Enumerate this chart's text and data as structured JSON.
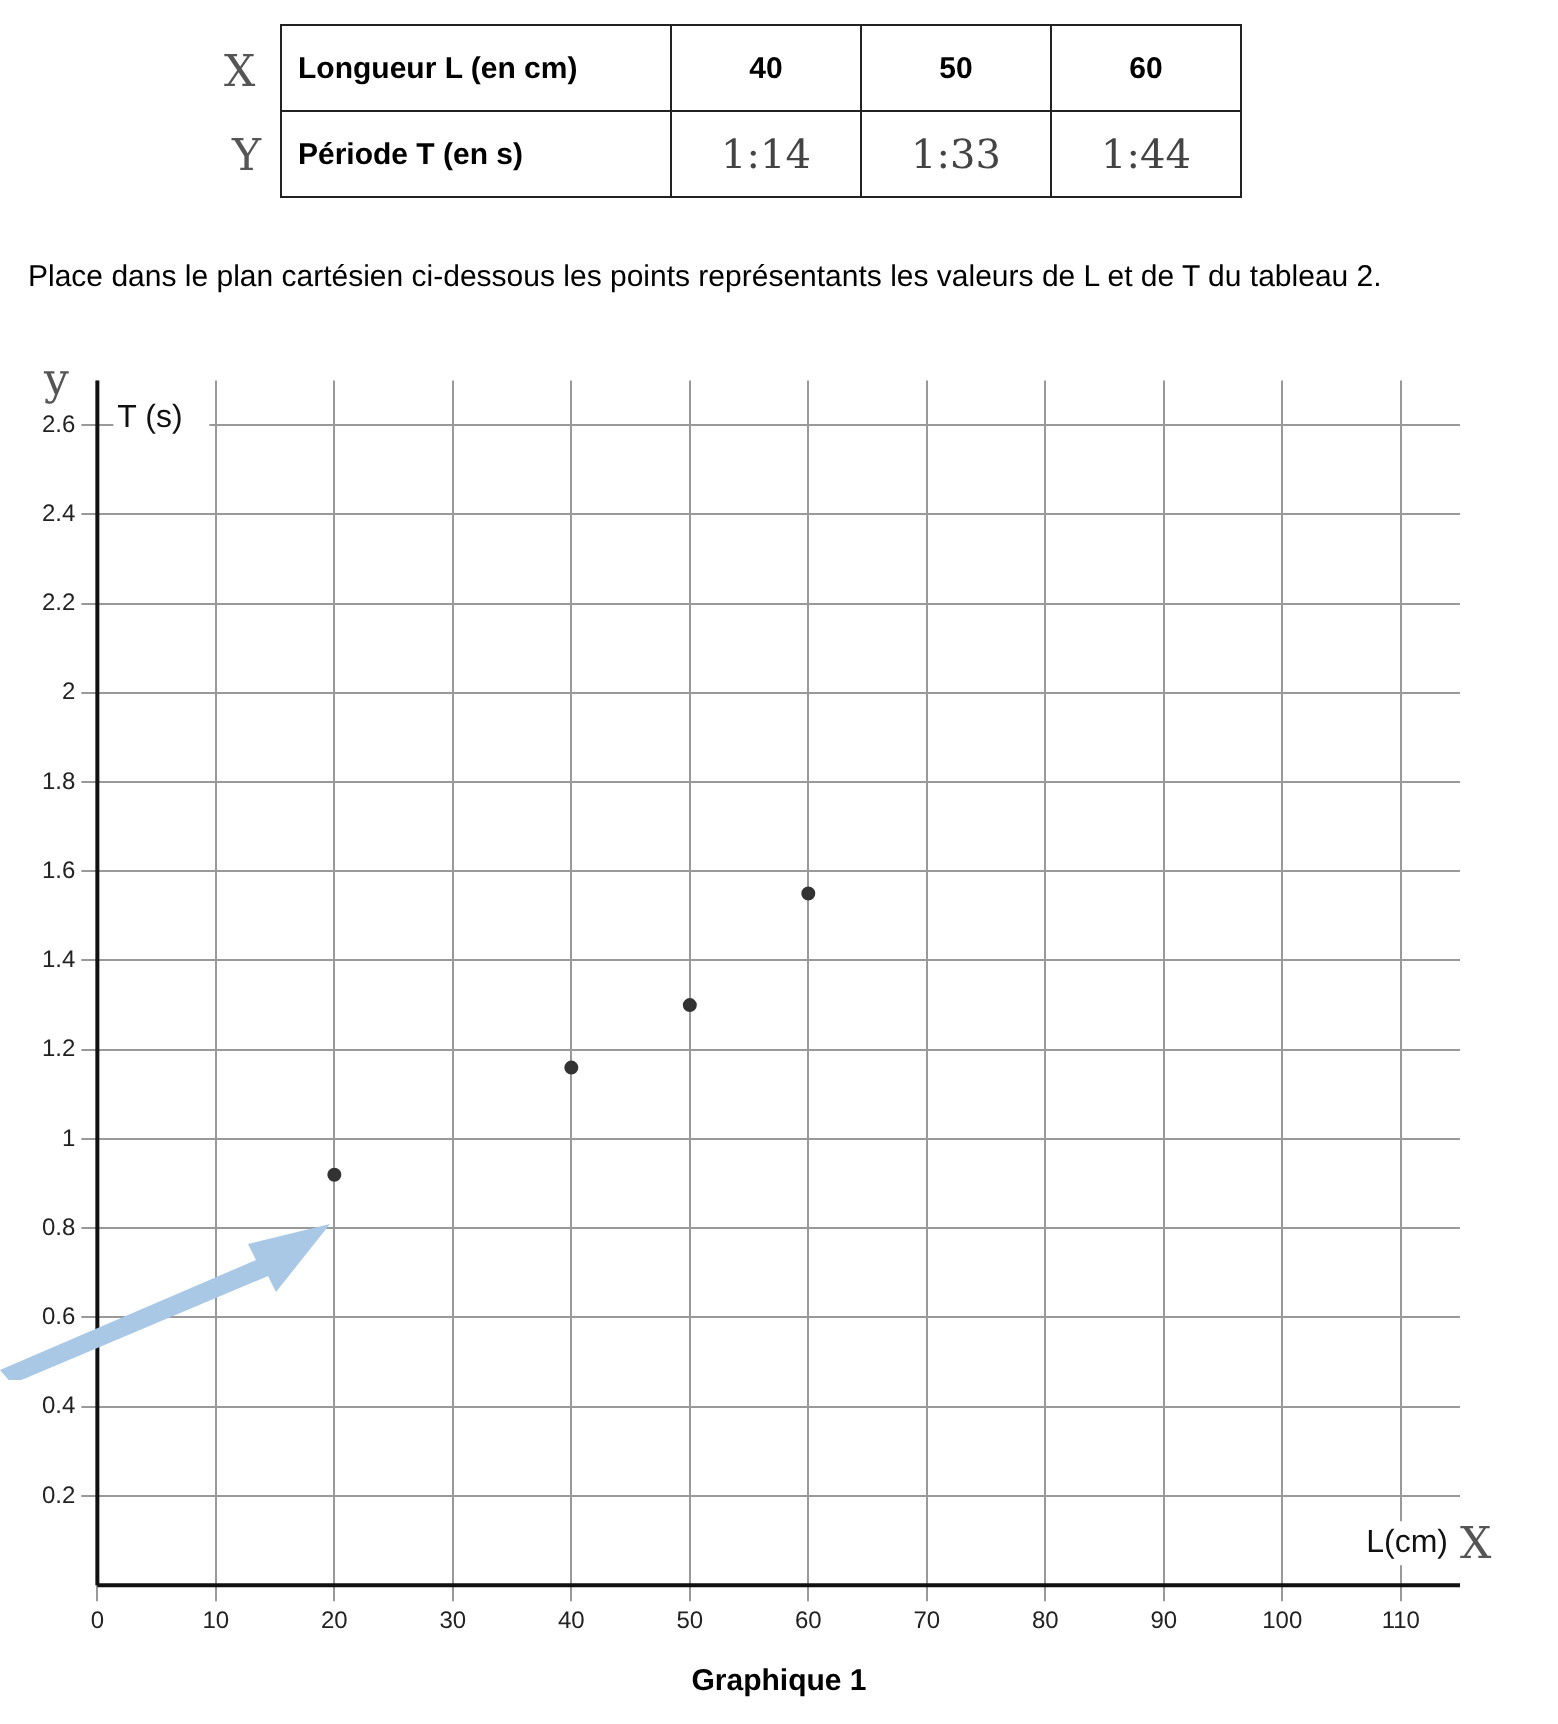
{
  "chart_data": {
    "type": "scatter",
    "title": "Graphique 1",
    "xlabel": "L(cm)",
    "ylabel": "T (s)",
    "annotations": [
      "Longueur L (en cm)",
      "40",
      "50",
      "60",
      "Période T (en s)",
      "1:14",
      "1:33",
      "1:44",
      "Place dans le plan cartésien ci-dessous les points représentants les valeurs de L et de T du tableau 2.",
      "X",
      "Y",
      "y",
      "X"
    ],
    "series": [
      {
        "color": "#333333",
        "x": [
          20,
          40,
          50,
          60
        ],
        "values": [
          0.92,
          1.16,
          1.3,
          1.55
        ]
      }
    ],
    "xlim": [
      0,
      115
    ],
    "xticks": [
      0,
      10,
      20,
      30,
      40,
      50,
      60,
      70,
      80,
      90,
      100,
      110
    ],
    "ylim": [
      0,
      2.7
    ],
    "yticks": [
      0.2,
      0.4,
      0.6,
      0.8,
      1,
      1.2,
      1.4,
      1.6,
      1.8,
      2,
      2.2,
      2.4,
      2.6
    ],
    "grid": true,
    "legend": false,
    "marker": "circle"
  }
}
